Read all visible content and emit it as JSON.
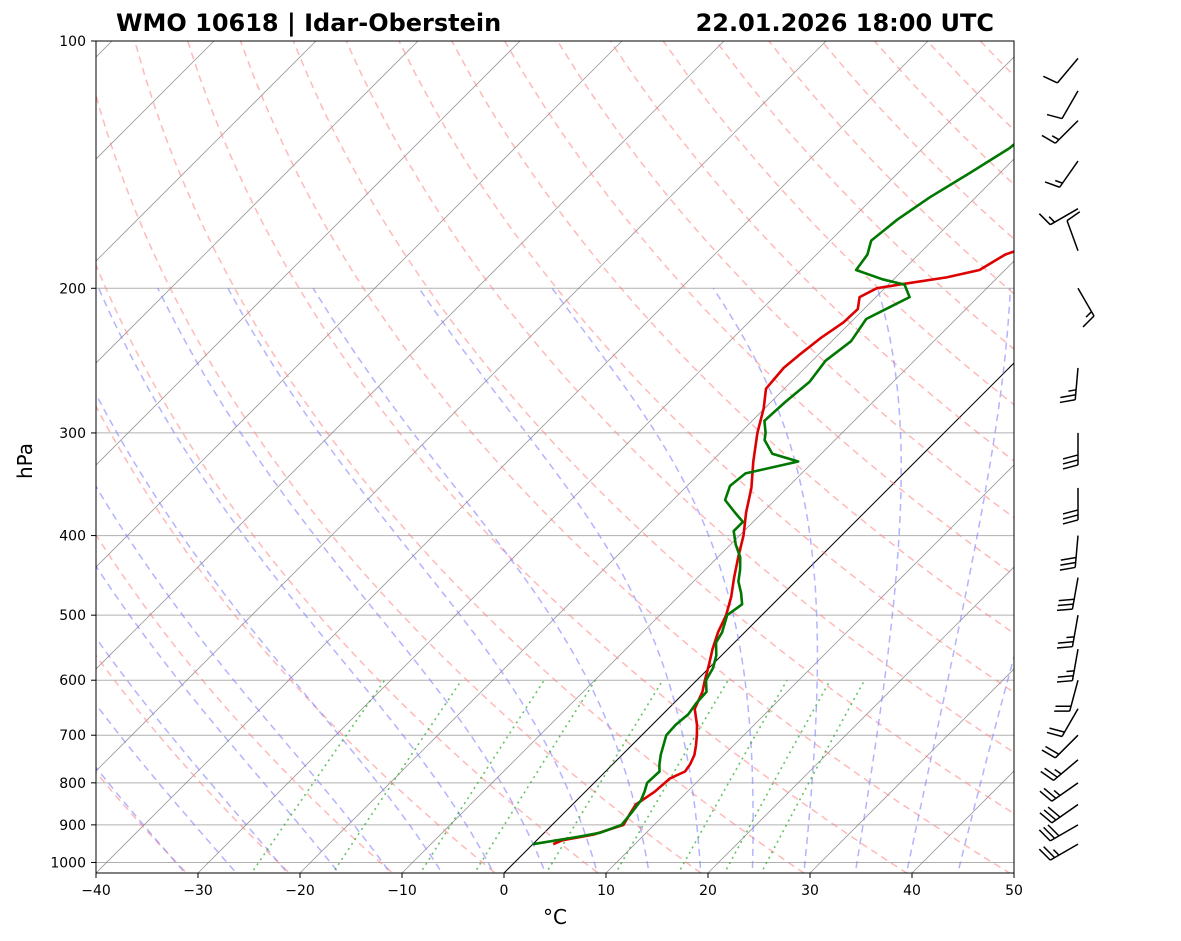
{
  "chart_data": {
    "type": "skew-t",
    "title_left": "WMO 10618 | Idar-Oberstein",
    "title_right": "22.01.2026 18:00 UTC",
    "xlabel": "°C",
    "ylabel": "hPa",
    "xlim": [
      -40,
      50
    ],
    "ylim": [
      1030,
      100
    ],
    "x_ticks": [
      -40,
      -30,
      -20,
      -10,
      0,
      10,
      20,
      30,
      40,
      50
    ],
    "x_tick_labels": [
      "−40",
      "−30",
      "−20",
      "−10",
      "0",
      "10",
      "20",
      "30",
      "40",
      "50"
    ],
    "y_ticks": [
      100,
      200,
      300,
      400,
      500,
      600,
      700,
      800,
      900,
      1000
    ],
    "y_tick_labels": [
      "100",
      "200",
      "300",
      "400",
      "500",
      "600",
      "700",
      "800",
      "900",
      "1000"
    ],
    "colors": {
      "temperature": "#dd0000",
      "dewpoint": "#007700",
      "dry_adiabats": "#ff8080",
      "moist_adiabats": "#8080ff",
      "mixing_ratio": "#22aa22",
      "isotherms": "#808080",
      "grid": "#b0b0b0",
      "barbs": "#000000"
    },
    "series": [
      {
        "name": "temperature",
        "points": [
          [
            950,
            2.0
          ],
          [
            940,
            2.5
          ],
          [
            925,
            5.0
          ],
          [
            900,
            7.0
          ],
          [
            870,
            6.5
          ],
          [
            850,
            6.2
          ],
          [
            820,
            6.8
          ],
          [
            790,
            7.0
          ],
          [
            775,
            7.8
          ],
          [
            760,
            7.6
          ],
          [
            740,
            7.1
          ],
          [
            720,
            6.3
          ],
          [
            700,
            5.4
          ],
          [
            680,
            4.4
          ],
          [
            650,
            2.6
          ],
          [
            620,
            1.7
          ],
          [
            600,
            0.8
          ],
          [
            575,
            -0.3
          ],
          [
            550,
            -1.5
          ],
          [
            525,
            -2.6
          ],
          [
            500,
            -3.5
          ],
          [
            475,
            -4.8
          ],
          [
            450,
            -6.4
          ],
          [
            425,
            -8.0
          ],
          [
            400,
            -9.6
          ],
          [
            375,
            -11.6
          ],
          [
            350,
            -13.5
          ],
          [
            325,
            -15.9
          ],
          [
            300,
            -18.3
          ],
          [
            280,
            -20.1
          ],
          [
            265,
            -21.8
          ],
          [
            250,
            -22.1
          ],
          [
            240,
            -21.8
          ],
          [
            230,
            -21.4
          ],
          [
            220,
            -20.7
          ],
          [
            212,
            -20.6
          ],
          [
            205,
            -21.6
          ],
          [
            200,
            -20.8
          ],
          [
            198,
            -19.0
          ],
          [
            194,
            -15.0
          ],
          [
            190,
            -12.5
          ],
          [
            182,
            -11.5
          ],
          [
            175,
            -9.0
          ],
          [
            165,
            -8.5
          ],
          [
            155,
            -6.5
          ],
          [
            145,
            -4.8
          ],
          [
            135,
            -3.2
          ],
          [
            125,
            -0.4
          ],
          [
            118,
            0.9
          ],
          [
            110,
            1.3
          ],
          [
            100,
            1.9
          ]
        ]
      },
      {
        "name": "dewpoint",
        "points": [
          [
            950,
            0.0
          ],
          [
            930,
            3.8
          ],
          [
            920,
            5.5
          ],
          [
            900,
            6.8
          ],
          [
            870,
            6.6
          ],
          [
            840,
            6.3
          ],
          [
            820,
            5.8
          ],
          [
            800,
            5.2
          ],
          [
            775,
            5.3
          ],
          [
            760,
            4.6
          ],
          [
            740,
            3.8
          ],
          [
            700,
            2.4
          ],
          [
            680,
            2.3
          ],
          [
            660,
            2.5
          ],
          [
            640,
            2.2
          ],
          [
            620,
            2.1
          ],
          [
            600,
            0.9
          ],
          [
            580,
            0.4
          ],
          [
            560,
            -0.5
          ],
          [
            540,
            -1.8
          ],
          [
            525,
            -2.2
          ],
          [
            500,
            -3.4
          ],
          [
            485,
            -3.0
          ],
          [
            470,
            -4.2
          ],
          [
            455,
            -5.6
          ],
          [
            440,
            -6.6
          ],
          [
            425,
            -7.8
          ],
          [
            410,
            -9.5
          ],
          [
            395,
            -11.0
          ],
          [
            385,
            -11.0
          ],
          [
            375,
            -12.7
          ],
          [
            362,
            -14.9
          ],
          [
            348,
            -15.8
          ],
          [
            336,
            -15.5
          ],
          [
            325,
            -11.5
          ],
          [
            318,
            -14.8
          ],
          [
            306,
            -16.9
          ],
          [
            300,
            -17.5
          ],
          [
            290,
            -18.8
          ],
          [
            275,
            -18.6
          ],
          [
            260,
            -18.2
          ],
          [
            245,
            -18.7
          ],
          [
            232,
            -18.1
          ],
          [
            218,
            -18.8
          ],
          [
            205,
            -16.7
          ],
          [
            198,
            -18.4
          ],
          [
            195,
            -21.1
          ],
          [
            190,
            -24.6
          ],
          [
            182,
            -25.0
          ],
          [
            175,
            -26.0
          ],
          [
            165,
            -25.5
          ],
          [
            155,
            -24.5
          ],
          [
            145,
            -23.0
          ],
          [
            135,
            -21.5
          ],
          [
            125,
            -21.0
          ],
          [
            115,
            -20.0
          ],
          [
            106,
            -18.5
          ],
          [
            100,
            -18.0
          ]
        ]
      }
    ],
    "wind_barbs": [
      {
        "p": 950,
        "speed_kt": 25,
        "dir_deg": 240
      },
      {
        "p": 900,
        "speed_kt": 30,
        "dir_deg": 240
      },
      {
        "p": 850,
        "speed_kt": 30,
        "dir_deg": 235
      },
      {
        "p": 800,
        "speed_kt": 25,
        "dir_deg": 235
      },
      {
        "p": 750,
        "speed_kt": 25,
        "dir_deg": 230
      },
      {
        "p": 700,
        "speed_kt": 20,
        "dir_deg": 225
      },
      {
        "p": 650,
        "speed_kt": 20,
        "dir_deg": 210
      },
      {
        "p": 600,
        "speed_kt": 20,
        "dir_deg": 195
      },
      {
        "p": 550,
        "speed_kt": 25,
        "dir_deg": 190
      },
      {
        "p": 500,
        "speed_kt": 25,
        "dir_deg": 190
      },
      {
        "p": 450,
        "speed_kt": 30,
        "dir_deg": 190
      },
      {
        "p": 400,
        "speed_kt": 30,
        "dir_deg": 185
      },
      {
        "p": 350,
        "speed_kt": 30,
        "dir_deg": 180
      },
      {
        "p": 300,
        "speed_kt": 30,
        "dir_deg": 180
      },
      {
        "p": 250,
        "speed_kt": 25,
        "dir_deg": 185
      },
      {
        "p": 200,
        "speed_kt": 15,
        "dir_deg": 150
      },
      {
        "p": 180,
        "speed_kt": 10,
        "dir_deg": 340
      },
      {
        "p": 160,
        "speed_kt": 15,
        "dir_deg": 240
      },
      {
        "p": 140,
        "speed_kt": 15,
        "dir_deg": 215
      },
      {
        "p": 125,
        "speed_kt": 15,
        "dir_deg": 225
      },
      {
        "p": 115,
        "speed_kt": 10,
        "dir_deg": 210
      },
      {
        "p": 105,
        "speed_kt": 10,
        "dir_deg": 220
      }
    ],
    "reference_lines": {
      "isotherm_start_temps": [
        -160,
        -150,
        -140,
        -130,
        -120,
        -110,
        -100,
        -90,
        -80,
        -70,
        -60,
        -50,
        -40,
        -30,
        -20,
        -10,
        0,
        10,
        20,
        30,
        40,
        50
      ],
      "dry_adiabat_thetas_k": [
        230,
        240,
        250,
        260,
        270,
        280,
        290,
        300,
        310,
        320,
        330,
        340,
        350,
        360,
        370,
        380,
        390,
        400,
        410,
        420,
        430,
        440,
        450,
        460,
        470,
        480,
        490,
        500,
        510,
        520,
        530
      ],
      "moist_adiabat_start_temps_c": [
        -30,
        -25,
        -20,
        -15,
        -10,
        -5,
        0,
        5,
        10,
        15,
        20,
        25,
        30,
        35,
        40,
        45
      ],
      "mixing_ratios_gkg": [
        0.5,
        1,
        2,
        3,
        5,
        8,
        12,
        16,
        20
      ],
      "zero_isotherm_highlight": 0
    }
  }
}
